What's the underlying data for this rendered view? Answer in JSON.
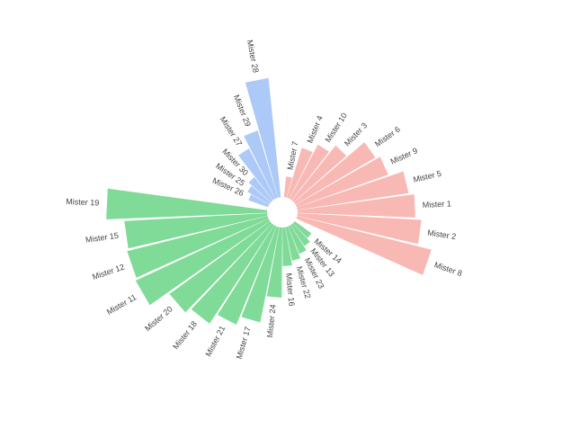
{
  "chart_data": {
    "type": "circular_bar",
    "categories": [
      null,
      "Mister 7",
      "Mister 4",
      "Mister 10",
      "Mister 3",
      "Mister 6",
      "Mister 9",
      "Mister 5",
      "Mister 1",
      "Mister 2",
      "Mister 8",
      null,
      "Mister 14",
      "Mister 13",
      "Mister 23",
      "Mister 22",
      "Mister 16",
      "Mister 24",
      "Mister 17",
      "Mister 21",
      "Mister 18",
      "Mister 20",
      "Mister 11",
      "Mister 12",
      "Mister 15",
      "Mister 19",
      null,
      "Mister 26",
      "Mister 25",
      "Mister 30",
      "Mister 27",
      "Mister 29",
      "Mister 28"
    ],
    "values": [
      null,
      23,
      58,
      68,
      78,
      103,
      108,
      125,
      131,
      138,
      154,
      null,
      23,
      28,
      33,
      38,
      43,
      78,
      108,
      118,
      131,
      138,
      163,
      161,
      159,
      179,
      null,
      23,
      28,
      33,
      63,
      78,
      133
    ],
    "colors": [
      null,
      "#f8b9b5",
      "#f8b9b5",
      "#f8b9b5",
      "#f8b9b5",
      "#f8b9b5",
      "#f8b9b5",
      "#f8b9b5",
      "#f8b9b5",
      "#f8b9b5",
      "#f8b9b5",
      null,
      "#80da98",
      "#80da98",
      "#80da98",
      "#80da98",
      "#80da98",
      "#80da98",
      "#80da98",
      "#80da98",
      "#80da98",
      "#80da98",
      "#80da98",
      "#80da98",
      "#80da98",
      "#80da98",
      null,
      "#adc9f7",
      "#adc9f7",
      "#adc9f7",
      "#adc9f7",
      "#adc9f7",
      "#adc9f7"
    ]
  }
}
